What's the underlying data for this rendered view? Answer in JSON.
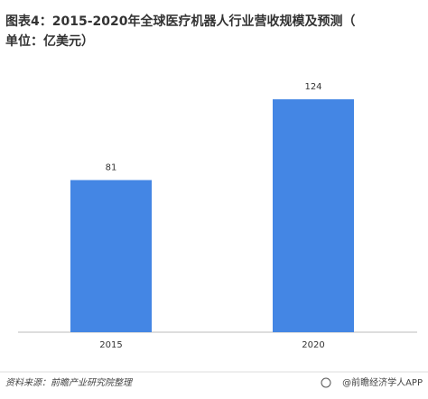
{
  "chart_data": {
    "type": "bar",
    "title": "图表4：2015-2020年全球医疗机器人行业营收规模及预测（单位：亿美元）",
    "categories": [
      "2015",
      "2020"
    ],
    "values": [
      81,
      124
    ],
    "color": "#4486e4",
    "source": "资料来源：前瞻产业研究院整理",
    "footer": "@前瞻经济学人APP"
  }
}
